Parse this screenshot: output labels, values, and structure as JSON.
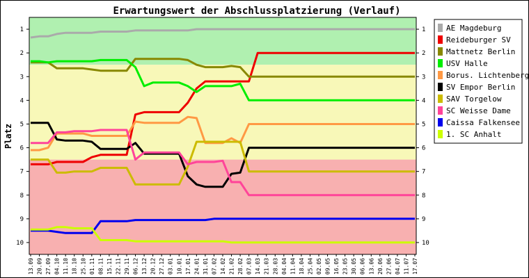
{
  "chart_data": {
    "type": "line",
    "title": "Erwartungswert der Abschlussplatzierung (Verlauf)",
    "ylabel": "Platz",
    "xlabel": "",
    "ylim": [
      0.5,
      10.5
    ],
    "y_inverted": true,
    "y_ticks": [
      "1",
      "2",
      "3",
      "4",
      "5",
      "6",
      "7",
      "8",
      "9",
      "10"
    ],
    "bands": [
      {
        "from": 0.5,
        "to": 2.5,
        "color": "#b0f0b0"
      },
      {
        "from": 2.5,
        "to": 6.5,
        "color": "#f8f8b8"
      },
      {
        "from": 6.5,
        "to": 10.5,
        "color": "#f8b0b0"
      }
    ],
    "x": [
      "13.09",
      "20.09",
      "27.09",
      "04.10",
      "11.10",
      "18.10",
      "25.10",
      "01.11",
      "08.11",
      "15.11",
      "22.11",
      "29.11",
      "06.12",
      "13.12",
      "20.12",
      "27.12",
      "03.01",
      "10.01",
      "17.01",
      "24.01",
      "31.01",
      "07.02",
      "14.02",
      "21.02",
      "28.02",
      "07.03",
      "14.03",
      "21.03",
      "28.03",
      "04.04",
      "11.04",
      "18.04",
      "25.04",
      "02.05",
      "09.05",
      "16.05",
      "23.05",
      "30.05",
      "06.06",
      "13.06",
      "20.06",
      "27.06",
      "04.07",
      "11.07",
      "17.07"
    ],
    "legend_position": "right",
    "series": [
      {
        "name": "AE Magdeburg",
        "color": "#aaaaaa",
        "values": [
          1.35,
          1.3,
          1.3,
          1.2,
          1.15,
          1.15,
          1.15,
          1.15,
          1.1,
          1.1,
          1.1,
          1.1,
          1.05,
          1.05,
          1.05,
          1.05,
          1.05,
          1.05,
          1.05,
          1.0,
          1.0,
          1.0,
          1.0,
          1.0,
          1.0,
          1.0,
          1.0,
          1.0,
          1.0,
          1.0,
          1.0,
          1.0,
          1.0,
          1.0,
          1.0,
          1.0,
          1.0,
          1.0,
          1.0,
          1.0,
          1.0,
          1.0,
          1.0,
          1.0,
          1.0
        ]
      },
      {
        "name": "Reideburger SV",
        "color": "#ee0000",
        "values": [
          6.7,
          6.7,
          6.7,
          6.6,
          6.6,
          6.6,
          6.6,
          6.4,
          6.3,
          6.3,
          6.3,
          6.3,
          4.6,
          4.5,
          4.5,
          4.5,
          4.5,
          4.5,
          4.1,
          3.5,
          3.2,
          3.2,
          3.2,
          3.2,
          3.2,
          3.2,
          2.0,
          2.0,
          2.0,
          2.0,
          2.0,
          2.0,
          2.0,
          2.0,
          2.0,
          2.0,
          2.0,
          2.0,
          2.0,
          2.0,
          2.0,
          2.0,
          2.0,
          2.0,
          2.0
        ]
      },
      {
        "name": "Mattnetz Berlin",
        "color": "#888800",
        "values": [
          2.4,
          2.4,
          2.4,
          2.65,
          2.65,
          2.65,
          2.65,
          2.7,
          2.75,
          2.75,
          2.75,
          2.75,
          2.25,
          2.25,
          2.25,
          2.25,
          2.25,
          2.25,
          2.3,
          2.5,
          2.6,
          2.6,
          2.6,
          2.55,
          2.6,
          3.0,
          3.0,
          3.0,
          3.0,
          3.0,
          3.0,
          3.0,
          3.0,
          3.0,
          3.0,
          3.0,
          3.0,
          3.0,
          3.0,
          3.0,
          3.0,
          3.0,
          3.0,
          3.0,
          3.0
        ]
      },
      {
        "name": "USV Halle",
        "color": "#00ee00",
        "values": [
          2.35,
          2.35,
          2.4,
          2.35,
          2.35,
          2.35,
          2.35,
          2.35,
          2.3,
          2.3,
          2.3,
          2.3,
          2.6,
          3.4,
          3.25,
          3.25,
          3.25,
          3.25,
          3.4,
          3.65,
          3.4,
          3.4,
          3.4,
          3.4,
          3.3,
          4.0,
          4.0,
          4.0,
          4.0,
          4.0,
          4.0,
          4.0,
          4.0,
          4.0,
          4.0,
          4.0,
          4.0,
          4.0,
          4.0,
          4.0,
          4.0,
          4.0,
          4.0,
          4.0,
          4.0
        ]
      },
      {
        "name": "Borus. Lichtenberg",
        "color": "#ff9944",
        "values": [
          6.1,
          6.1,
          6.0,
          5.4,
          5.4,
          5.4,
          5.4,
          5.5,
          5.5,
          5.5,
          5.5,
          5.5,
          4.9,
          4.95,
          4.95,
          4.95,
          4.95,
          4.95,
          4.7,
          4.75,
          5.8,
          5.8,
          5.8,
          5.6,
          5.8,
          5.0,
          5.0,
          5.0,
          5.0,
          5.0,
          5.0,
          5.0,
          5.0,
          5.0,
          5.0,
          5.0,
          5.0,
          5.0,
          5.0,
          5.0,
          5.0,
          5.0,
          5.0,
          5.0,
          5.0
        ]
      },
      {
        "name": "SV Empor Berlin",
        "color": "#000000",
        "values": [
          4.95,
          4.95,
          4.95,
          5.65,
          5.7,
          5.7,
          5.7,
          5.75,
          6.05,
          6.05,
          6.05,
          6.05,
          5.8,
          6.25,
          6.25,
          6.25,
          6.25,
          6.25,
          7.2,
          7.55,
          7.65,
          7.65,
          7.65,
          7.1,
          7.05,
          6.0,
          6.0,
          6.0,
          6.0,
          6.0,
          6.0,
          6.0,
          6.0,
          6.0,
          6.0,
          6.0,
          6.0,
          6.0,
          6.0,
          6.0,
          6.0,
          6.0,
          6.0,
          6.0,
          6.0
        ]
      },
      {
        "name": "SAV Torgelow",
        "color": "#ccbb00",
        "values": [
          6.5,
          6.5,
          6.5,
          7.05,
          7.05,
          7.0,
          7.0,
          7.0,
          6.85,
          6.85,
          6.85,
          6.85,
          7.55,
          7.55,
          7.55,
          7.55,
          7.55,
          7.55,
          6.8,
          5.75,
          5.75,
          5.75,
          5.75,
          5.75,
          5.75,
          7.0,
          7.0,
          7.0,
          7.0,
          7.0,
          7.0,
          7.0,
          7.0,
          7.0,
          7.0,
          7.0,
          7.0,
          7.0,
          7.0,
          7.0,
          7.0,
          7.0,
          7.0,
          7.0,
          7.0
        ]
      },
      {
        "name": "SC Weisse Dame",
        "color": "#ff4499",
        "values": [
          5.8,
          5.8,
          5.8,
          5.35,
          5.35,
          5.3,
          5.3,
          5.3,
          5.25,
          5.25,
          5.25,
          5.25,
          6.5,
          6.2,
          6.2,
          6.2,
          6.2,
          6.2,
          6.7,
          6.6,
          6.6,
          6.6,
          6.55,
          7.45,
          7.45,
          8.0,
          8.0,
          8.0,
          8.0,
          8.0,
          8.0,
          8.0,
          8.0,
          8.0,
          8.0,
          8.0,
          8.0,
          8.0,
          8.0,
          8.0,
          8.0,
          8.0,
          8.0,
          8.0,
          8.0
        ]
      },
      {
        "name": "Caissa Falkensee",
        "color": "#0000ee",
        "values": [
          9.5,
          9.5,
          9.5,
          9.55,
          9.6,
          9.6,
          9.6,
          9.6,
          9.1,
          9.1,
          9.1,
          9.1,
          9.05,
          9.05,
          9.05,
          9.05,
          9.05,
          9.05,
          9.05,
          9.05,
          9.05,
          9.0,
          9.0,
          9.0,
          9.0,
          9.0,
          9.0,
          9.0,
          9.0,
          9.0,
          9.0,
          9.0,
          9.0,
          9.0,
          9.0,
          9.0,
          9.0,
          9.0,
          9.0,
          9.0,
          9.0,
          9.0,
          9.0,
          9.0,
          9.0
        ]
      },
      {
        "name": "1. SC Anhalt",
        "color": "#ccff00",
        "values": [
          9.45,
          9.45,
          9.45,
          9.35,
          9.35,
          9.4,
          9.4,
          9.4,
          9.9,
          9.9,
          9.9,
          9.9,
          9.95,
          9.95,
          9.95,
          9.95,
          9.95,
          9.95,
          9.95,
          9.95,
          9.95,
          9.95,
          9.95,
          10.0,
          10.0,
          10.0,
          10.0,
          10.0,
          10.0,
          10.0,
          10.0,
          10.0,
          10.0,
          10.0,
          10.0,
          10.0,
          10.0,
          10.0,
          10.0,
          10.0,
          10.0,
          10.0,
          10.0,
          10.0,
          10.0
        ]
      }
    ]
  }
}
